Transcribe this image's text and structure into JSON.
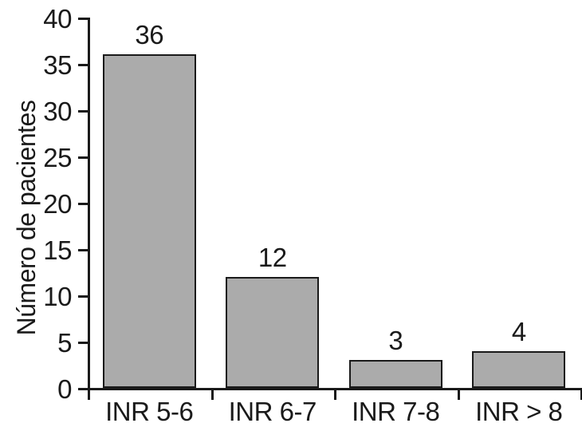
{
  "chart_data": {
    "type": "bar",
    "categories": [
      "INR 5-6",
      "INR 6-7",
      "INR 7-8",
      "INR > 8"
    ],
    "values": [
      36,
      12,
      3,
      4
    ],
    "bar_labels": [
      "36",
      "12",
      "3",
      "4"
    ],
    "title": "",
    "xlabel": "",
    "ylabel": "Número de pacientes",
    "ylim": [
      0,
      40
    ],
    "yticks": [
      0,
      5,
      10,
      15,
      20,
      25,
      30,
      35,
      40
    ],
    "grid": false,
    "legend": false,
    "colors": {
      "bar_fill": "#ababab",
      "bar_border": "#1a1a1a",
      "axis": "#1a1a1a",
      "text": "#1a1a1a",
      "background": "#ffffff"
    }
  }
}
